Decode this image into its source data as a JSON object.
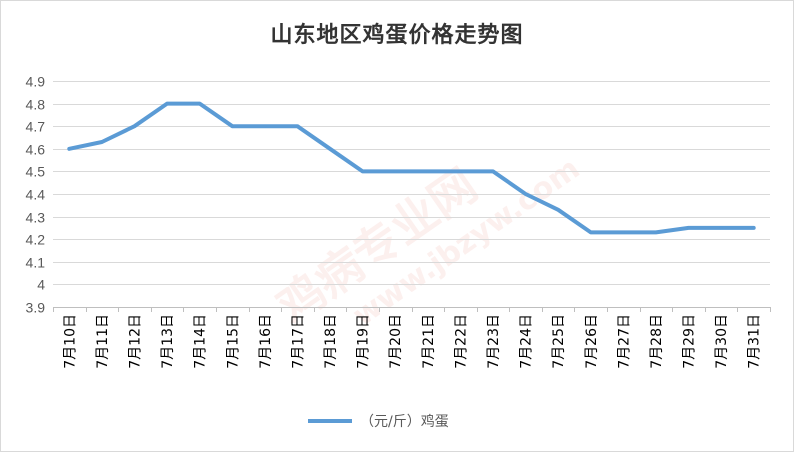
{
  "chart_data": {
    "type": "line",
    "title": "山东地区鸡蛋价格走势图",
    "categories": [
      "7月10日",
      "7月11日",
      "7月12日",
      "7月13日",
      "7月14日",
      "7月15日",
      "7月16日",
      "7月17日",
      "7月18日",
      "7月19日",
      "7月20日",
      "7月21日",
      "7月22日",
      "7月23日",
      "7月24日",
      "7月25日",
      "7月26日",
      "7月27日",
      "7月28日",
      "7月29日",
      "7月30日",
      "7月31日"
    ],
    "series": [
      {
        "name": "（元/斤）鸡蛋",
        "values": [
          4.6,
          4.63,
          4.7,
          4.8,
          4.8,
          4.7,
          4.7,
          4.7,
          4.6,
          4.5,
          4.5,
          4.5,
          4.5,
          4.5,
          4.4,
          4.33,
          4.23,
          4.23,
          4.23,
          4.25,
          4.25,
          4.25
        ],
        "color": "#5b9bd5"
      }
    ],
    "yticks": [
      "3.9",
      "4",
      "4.1",
      "4.2",
      "4.3",
      "4.4",
      "4.5",
      "4.6",
      "4.7",
      "4.8",
      "4.9"
    ],
    "ylim": [
      3.9,
      4.9
    ],
    "xlabel": "",
    "ylabel": "",
    "grid": true,
    "legend": "bottom"
  },
  "watermark": {
    "text_cn": "鸡病专业网",
    "text_url": "www.jbzyw.com"
  }
}
